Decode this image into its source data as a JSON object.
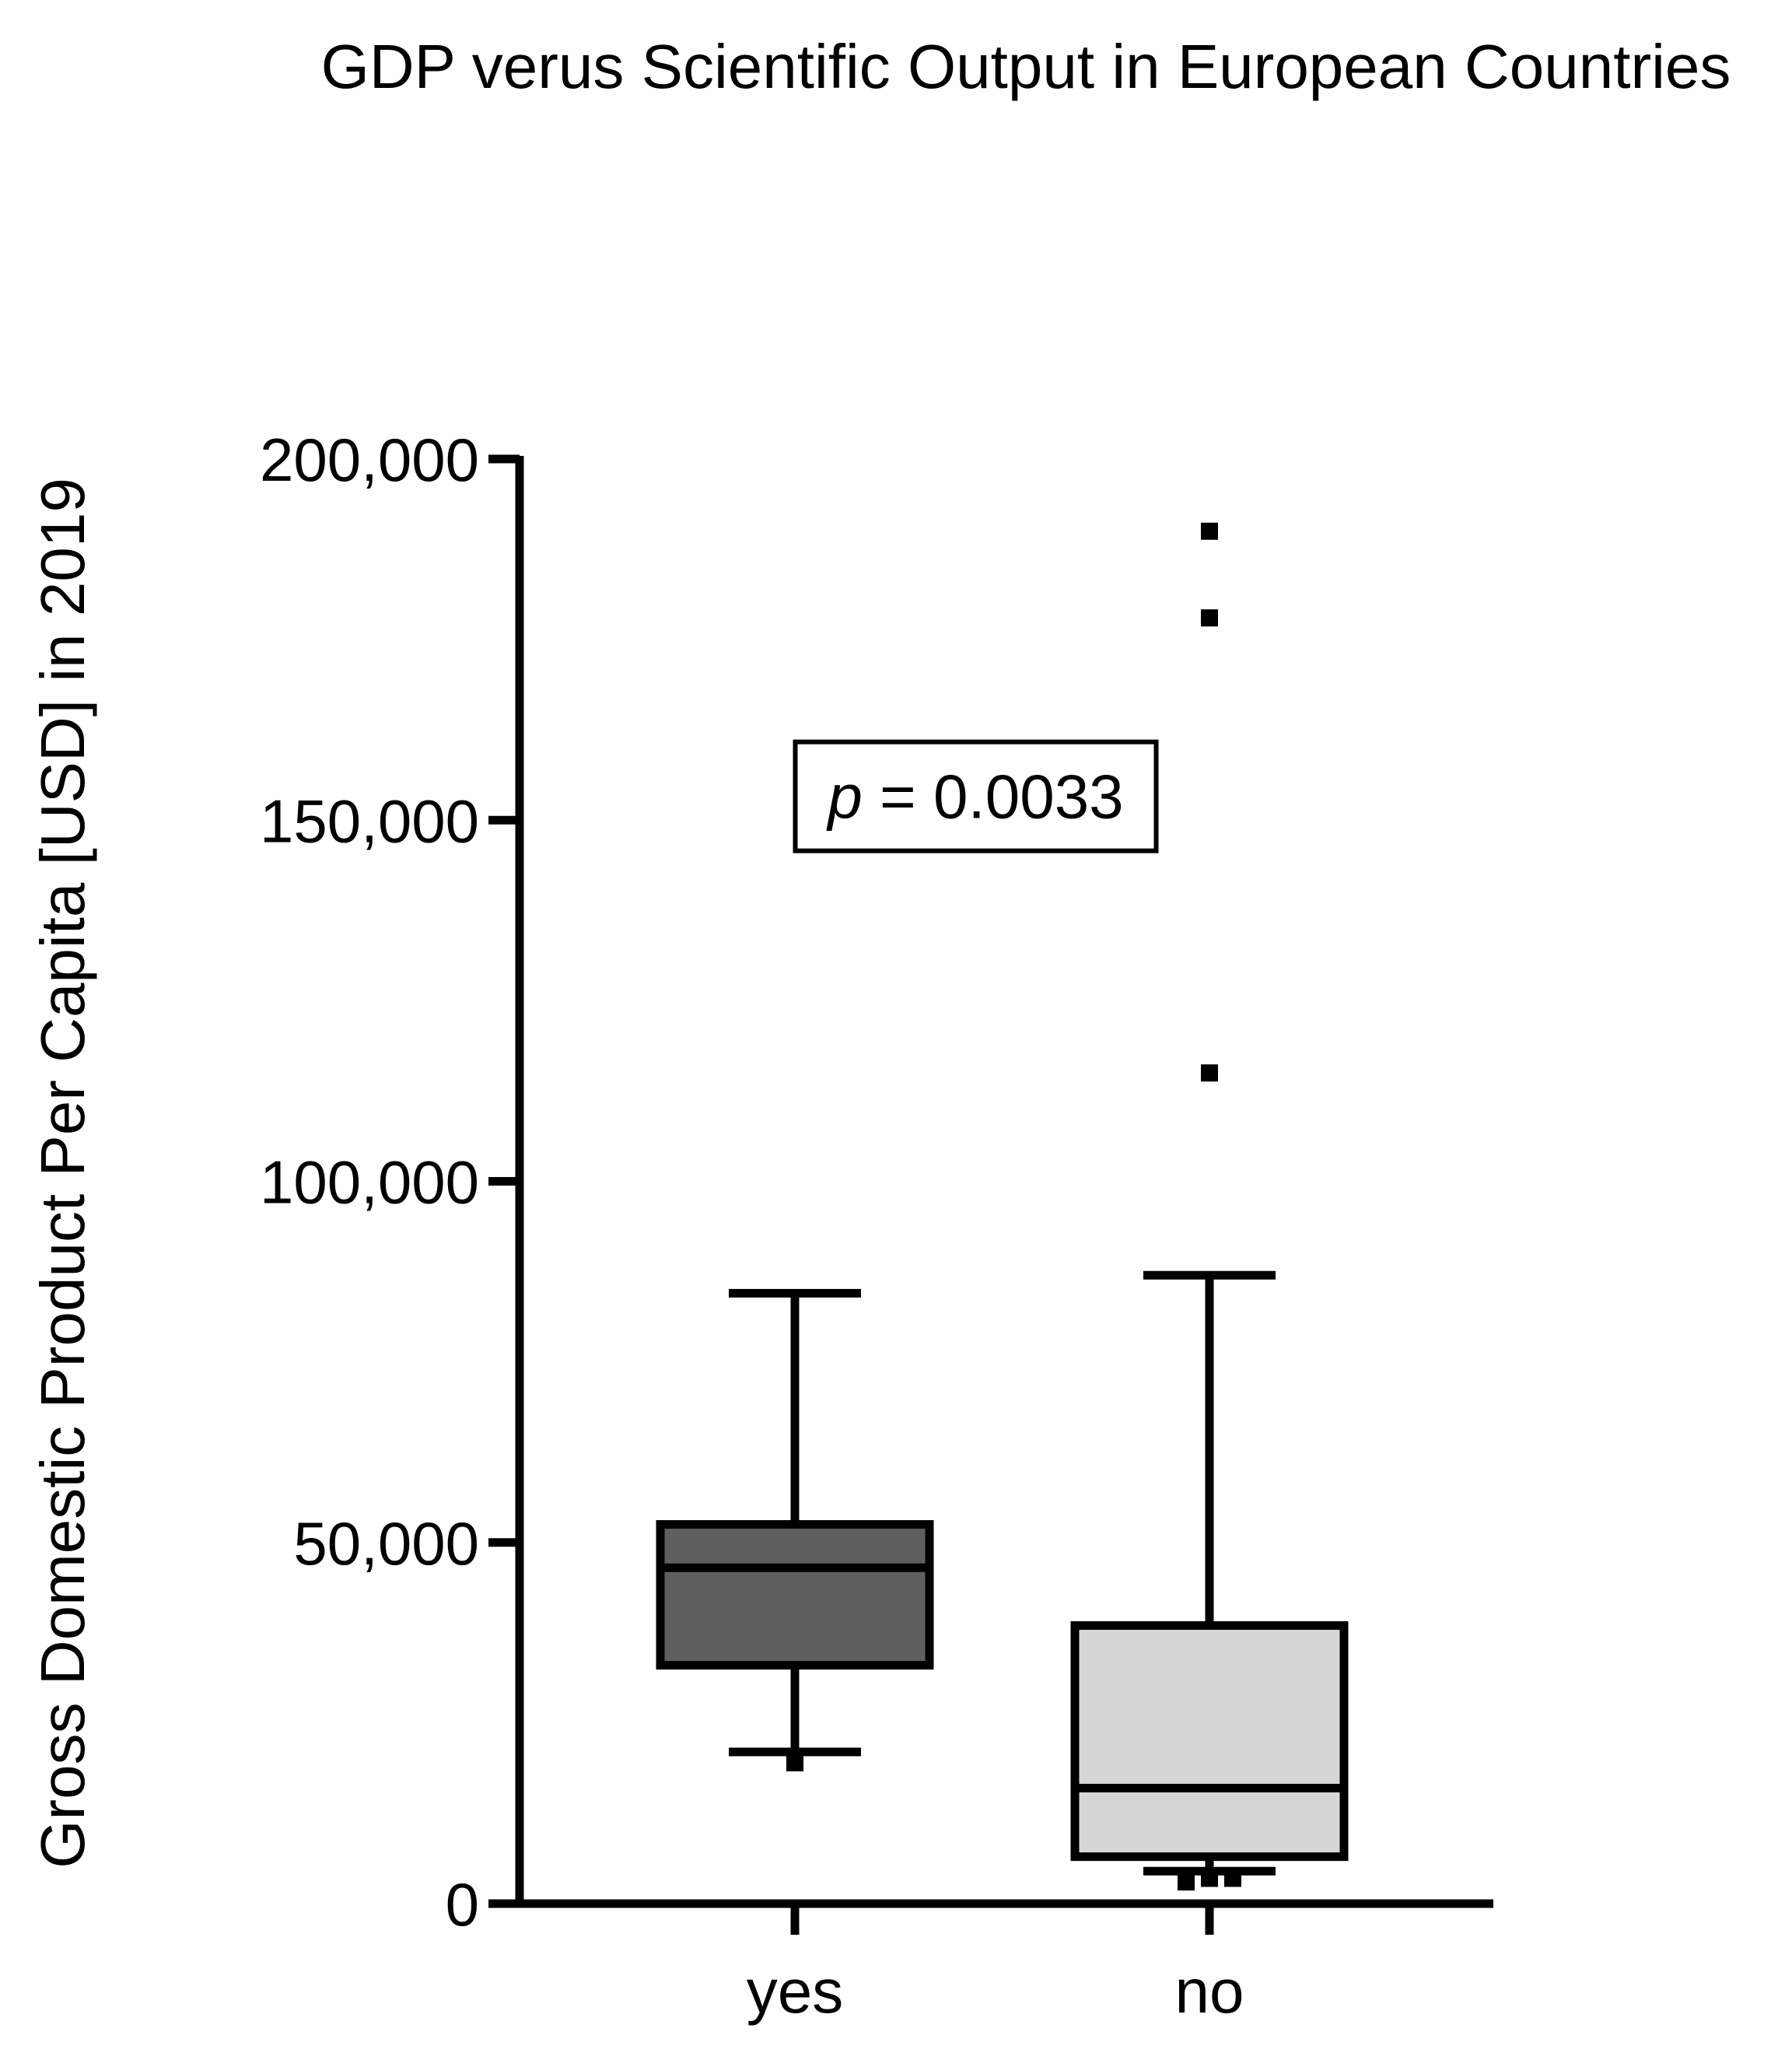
{
  "chart_data": {
    "type": "box",
    "title": "GDP verus Scientific Output in European Countries",
    "xlabel": "",
    "ylabel": "Gross Domestic Product Per Capita [USD] in 2019",
    "ylim": [
      0,
      200000
    ],
    "yticks": [
      0,
      50000,
      100000,
      150000,
      200000
    ],
    "ytick_labels": [
      "0",
      "50,000",
      "100,000",
      "150,000",
      "200,000"
    ],
    "grid": false,
    "legend": "none",
    "categories": [
      "yes",
      "no"
    ],
    "boxes": [
      {
        "category": "yes",
        "whisker_low": 21000,
        "q1": 33000,
        "median": 46500,
        "q3": 52500,
        "whisker_high": 84500,
        "outliers": [
          19500
        ],
        "fill": "#5f5f5f"
      },
      {
        "category": "no",
        "whisker_low": 4500,
        "q1": 6500,
        "median": 16000,
        "q3": 38500,
        "whisker_high": 87000,
        "outliers": [
          190000,
          178000,
          115000,
          3000,
          3500,
          3500
        ],
        "fill": "#d6d6d6"
      }
    ],
    "annotations": [
      {
        "prefix": "p",
        "text": " = 0.0033",
        "x_between": [
          "yes",
          "no"
        ],
        "y": 152000
      }
    ]
  }
}
